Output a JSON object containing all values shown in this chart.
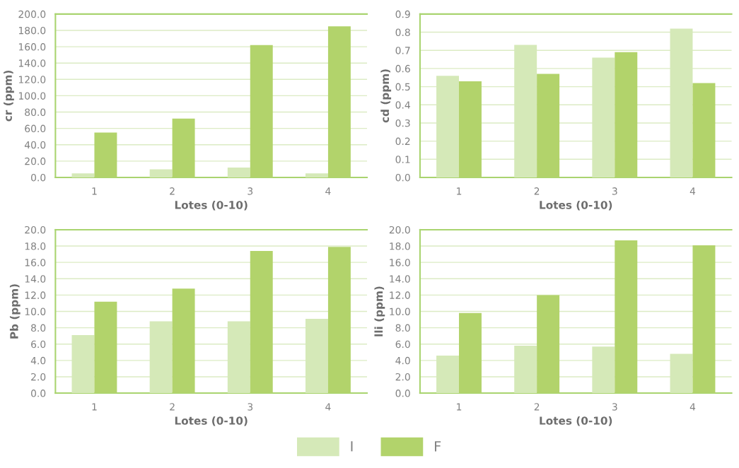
{
  "chart_data": [
    {
      "type": "bar",
      "ylabel": "cr (ppm)",
      "xlabel": "Lotes (0-10)",
      "categories": [
        "1",
        "2",
        "3",
        "4"
      ],
      "series": [
        {
          "name": "I",
          "color": "#d5e9b8",
          "values": [
            5,
            10,
            12,
            5
          ]
        },
        {
          "name": "F",
          "color": "#b2d36b",
          "values": [
            55,
            72,
            162,
            185
          ]
        }
      ],
      "ylim": [
        0,
        200
      ],
      "yticks": [
        {
          "value": 0,
          "label": "0.0"
        },
        {
          "value": 20,
          "label": "20.0"
        },
        {
          "value": 40,
          "label": "40.0"
        },
        {
          "value": 60,
          "label": "60.0"
        },
        {
          "value": 80,
          "label": "80.0"
        },
        {
          "value": 100,
          "label": "100.0"
        },
        {
          "value": 120,
          "label": "120.0"
        },
        {
          "value": 140,
          "label": "140.0"
        },
        {
          "value": 160,
          "label": "160.0"
        },
        {
          "value": 180,
          "label": "180.0"
        },
        {
          "value": 200,
          "label": "200.0"
        }
      ],
      "grid": "y",
      "legend": "bottom"
    },
    {
      "type": "bar",
      "ylabel": "cd (ppm)",
      "xlabel": "Lotes (0-10)",
      "categories": [
        "1",
        "2",
        "3",
        "4"
      ],
      "series": [
        {
          "color": "#d5e9b8",
          "values": [
            0.56,
            0.73,
            0.66,
            0.82
          ]
        },
        {
          "color": "#b2d36b",
          "values": [
            0.53,
            0.57,
            0.69,
            0.52
          ]
        }
      ],
      "ylim": [
        0,
        0.9
      ],
      "yticks": [
        {
          "value": 0,
          "label": "0.0"
        },
        0.1,
        0.2,
        0.3,
        0.4,
        0.5,
        0.6,
        0.7,
        0.8,
        0.9
      ],
      "grid": "y"
    },
    {
      "type": "bar",
      "ylabel": "Pb (ppm)",
      "xlabel": "Lotes (0-10)",
      "categories": [
        "1",
        "2",
        "3",
        "4"
      ],
      "series": [
        {
          "color": "#d5e9b8",
          "values": [
            7.1,
            8.8,
            8.8,
            9.1
          ]
        },
        {
          "color": "#b2d36b",
          "values": [
            11.2,
            12.8,
            17.4,
            17.9
          ]
        }
      ],
      "ylim": [
        0,
        20
      ],
      "yticks": [
        {
          "value": 0,
          "label": "0.0"
        },
        {
          "value": 2,
          "label": "2.0"
        },
        {
          "value": 4,
          "label": "4.0"
        },
        {
          "value": 6,
          "label": "6.0"
        },
        {
          "value": 8,
          "label": "8.0"
        },
        {
          "value": 10,
          "label": "10.0"
        },
        {
          "value": 12,
          "label": "12.0"
        },
        {
          "value": 14,
          "label": "14.0"
        },
        {
          "value": 16,
          "label": "16.0"
        },
        {
          "value": 18,
          "label": "18.0"
        },
        {
          "value": 20,
          "label": "20.0"
        }
      ],
      "grid": "y"
    },
    {
      "type": "bar",
      "ylabel": "lli (ppm)",
      "xlabel": "Lotes (0-10)",
      "categories": [
        "1",
        "2",
        "3",
        "4"
      ],
      "series": [
        {
          "color": "#d5e9b8",
          "values": [
            4.6,
            5.8,
            5.7,
            4.8
          ]
        },
        {
          "color": "#b2d36b",
          "values": [
            9.8,
            12.0,
            18.7,
            18.1
          ]
        }
      ],
      "ylim": [
        0,
        20
      ],
      "yticks": [
        {
          "value": 0,
          "label": "0.0"
        },
        {
          "value": 2,
          "label": "2.0"
        },
        {
          "value": 4,
          "label": "4.0"
        },
        {
          "value": 6,
          "label": "6.0"
        },
        {
          "value": 8,
          "label": "8.0"
        },
        {
          "value": 10,
          "label": "10.0"
        },
        {
          "value": 12,
          "label": "12.0"
        },
        {
          "value": 14,
          "label": "14.0"
        },
        {
          "value": 16,
          "label": "16.0"
        },
        {
          "value": 18,
          "label": "18.0"
        },
        {
          "value": 20,
          "label": "20.0"
        }
      ],
      "grid": "y"
    }
  ]
}
